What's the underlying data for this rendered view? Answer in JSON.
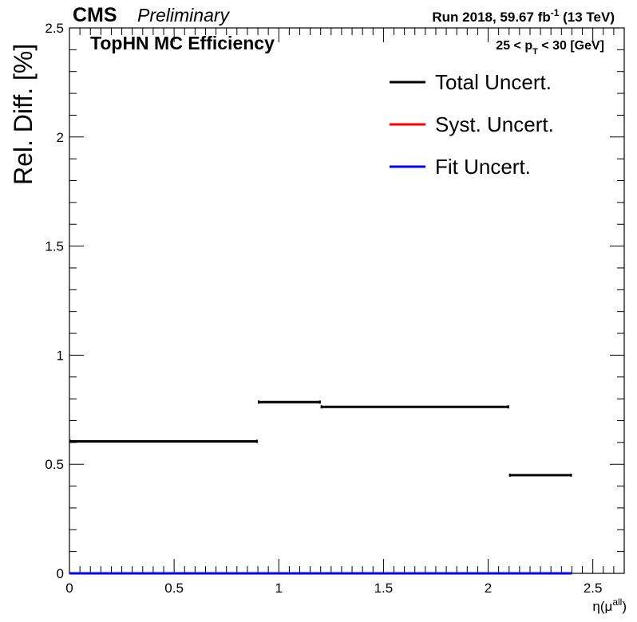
{
  "chart_data": {
    "type": "step",
    "header": {
      "experiment": "CMS",
      "status": "Preliminary",
      "run_label": "Run 2018,  59.67 fb",
      "run_superscript": "-1",
      "energy": "  (13 TeV)"
    },
    "title": "TopHN MC Efficiency",
    "annotation": {
      "prefix": "25 < p",
      "subscript": "T",
      "suffix": " < 30 [GeV]"
    },
    "xlabel": {
      "main": "η(μ",
      "superscript": "all",
      "close": ")"
    },
    "ylabel": "Rel. Diff. [%]",
    "xlim": [
      0,
      2.65
    ],
    "ylim": [
      0,
      2.5
    ],
    "x_ticks": [
      "0",
      "0.5",
      "1",
      "1.5",
      "2",
      "2.5"
    ],
    "x_tick_values": [
      0,
      0.5,
      1,
      1.5,
      2,
      2.5
    ],
    "y_ticks": [
      "0",
      "0.5",
      "1",
      "1.5",
      "2",
      "2.5"
    ],
    "y_tick_values": [
      0,
      0.5,
      1,
      1.5,
      2,
      2.5
    ],
    "bin_edges": [
      0,
      0.9,
      1.2,
      2.1,
      2.4
    ],
    "series": [
      {
        "name": "Total Uncert.",
        "color": "#000000",
        "values": [
          0.605,
          0.785,
          0.763,
          0.45
        ]
      },
      {
        "name": "Syst. Uncert.",
        "color": "#ff0000",
        "values": [
          0,
          0,
          0,
          0
        ]
      },
      {
        "name": "Fit Uncert.",
        "color": "#0000ff",
        "values": [
          0,
          0,
          0,
          0
        ]
      }
    ],
    "legend": {
      "position": "top-right"
    },
    "grid": false
  }
}
